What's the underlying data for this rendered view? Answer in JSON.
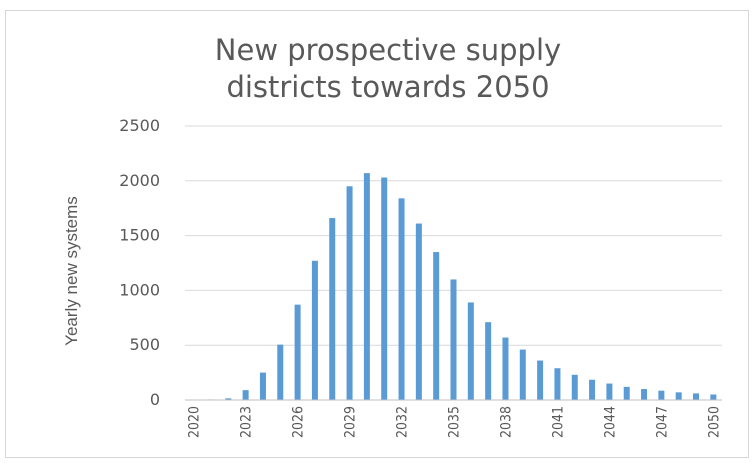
{
  "chart_data": {
    "type": "bar",
    "title_lines": [
      "New prospective supply",
      "districts towards 2050"
    ],
    "ylabel": "Yearly new systems",
    "xlabel": "",
    "ylim": [
      0,
      2500
    ],
    "yticks": [
      0,
      500,
      1000,
      1500,
      2000,
      2500
    ],
    "xtick_labels": [
      "2020",
      "2023",
      "2026",
      "2029",
      "2032",
      "2035",
      "2038",
      "2041",
      "2044",
      "2047",
      "2050"
    ],
    "grid": true,
    "legend": "none",
    "bar_color": "#5b9bd5",
    "categories": [
      "2020",
      "2021",
      "2022",
      "2023",
      "2024",
      "2025",
      "2026",
      "2027",
      "2028",
      "2029",
      "2030",
      "2031",
      "2032",
      "2033",
      "2034",
      "2035",
      "2036",
      "2037",
      "2038",
      "2039",
      "2040",
      "2041",
      "2042",
      "2043",
      "2044",
      "2045",
      "2046",
      "2047",
      "2048",
      "2049",
      "2050"
    ],
    "values": [
      0,
      5,
      15,
      90,
      250,
      505,
      870,
      1270,
      1660,
      1950,
      2070,
      2030,
      1840,
      1610,
      1350,
      1100,
      890,
      710,
      570,
      460,
      360,
      290,
      230,
      185,
      150,
      120,
      100,
      85,
      70,
      60,
      50
    ]
  }
}
